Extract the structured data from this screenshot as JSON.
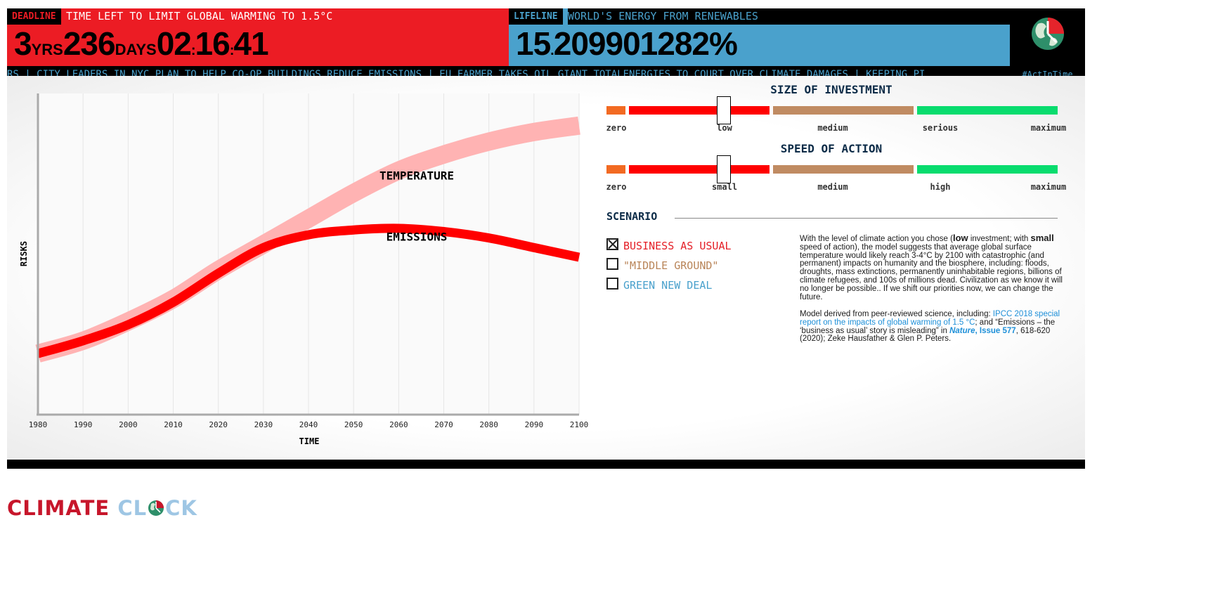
{
  "deadline": {
    "tag": "DEADLINE",
    "subtitle": "TIME LEFT TO LIMIT GLOBAL WARMING TO 1.5°C",
    "years": "3",
    "years_unit": "YRS",
    "days": "236",
    "days_unit": "DAYS",
    "hours": "02",
    "minutes": "16",
    "seconds": "41",
    "sep": ":"
  },
  "lifeline": {
    "tag": "LIFELINE",
    "subtitle": "WORLD'S ENERGY FROM RENEWABLES",
    "int_part": "15",
    "dot": ".",
    "frac_part": "209901282%"
  },
  "ticker": {
    "text": "RS | CITY LEADERS IN NYC PLAN TO HELP CO-OP BUILDINGS REDUCE EMISSIONS | EU FARMER TAKES OIL GIANT TOTALENERGIES TO COURT OVER CLIMATE DAMAGES | KEEPING PI"
  },
  "hashtag": "#ActInTime",
  "chart_data": {
    "type": "line",
    "xlabel": "TIME",
    "ylabel": "RISKS",
    "xlim": [
      1980,
      2100
    ],
    "ylim": [
      0,
      1
    ],
    "x_ticks": [
      "1980",
      "1990",
      "2000",
      "2010",
      "2020",
      "2030",
      "2040",
      "2050",
      "2060",
      "2070",
      "2080",
      "2090",
      "2100"
    ],
    "series": [
      {
        "name": "TEMPERATURE",
        "color": "#ffb3b3",
        "x": [
          1980,
          1990,
          2000,
          2010,
          2020,
          2030,
          2040,
          2050,
          2060,
          2070,
          2080,
          2090,
          2100
        ],
        "values": [
          0.19,
          0.23,
          0.29,
          0.36,
          0.45,
          0.53,
          0.61,
          0.69,
          0.76,
          0.81,
          0.85,
          0.88,
          0.9
        ]
      },
      {
        "name": "EMISSIONS",
        "color": "#ff0000",
        "x": [
          1980,
          1990,
          2000,
          2010,
          2020,
          2030,
          2040,
          2050,
          2060,
          2070,
          2080,
          2090,
          2100
        ],
        "values": [
          0.19,
          0.23,
          0.28,
          0.35,
          0.44,
          0.52,
          0.56,
          0.575,
          0.58,
          0.57,
          0.55,
          0.52,
          0.49
        ]
      }
    ],
    "grid": true
  },
  "investment": {
    "title": "SIZE OF INVESTMENT",
    "level": "low",
    "labels": [
      "zero",
      "low",
      "medium",
      "serious",
      "maximum"
    ]
  },
  "speed": {
    "title": "SPEED OF ACTION",
    "level": "small",
    "labels": [
      "zero",
      "small",
      "medium",
      "high",
      "maximum"
    ]
  },
  "scenario": {
    "title": "SCENARIO",
    "options": [
      {
        "label": "BUSINESS AS USUAL",
        "checked": true,
        "color": "#e41e26"
      },
      {
        "label": "\"MIDDLE GROUND\"",
        "checked": false,
        "color": "#b98559"
      },
      {
        "label": "GREEN NEW DEAL",
        "checked": false,
        "color": "#4aa1cc"
      }
    ]
  },
  "description": {
    "p1_a": "With the level of climate action you chose (",
    "p1_inv": "low",
    "p1_b": " investment; with ",
    "p1_speed": "small",
    "p1_c": " speed of action), the model suggests that average global surface temperature would likely reach 3-4°C by 2100 with catastrophic (and permanent) impacts on humanity and the biosphere, including: floods, droughts, mass extinctions, permanently uninhabitable regions, billions of climate refugees, and 100s of millions dead. Civilization as we know it will no longer be possible.. If we shift our priorities now, we can change the future.",
    "p2_a": "Model derived from peer-reviewed science, including: ",
    "p2_link1": "IPCC 2018 special report on the impacts of global warming of 1.5 °C",
    "p2_b": "; and “Emissions – the ‘business as usual’ story is misleading” in ",
    "p2_link2": "Nature",
    "p2_link3": ", Issue 577",
    "p2_c": ", 618-620 (2020); Zeke Hausfather & Glen P. Peters."
  },
  "logo": {
    "word1": "CLIMATE",
    "word2_a": "CL",
    "word2_b": "CK"
  }
}
